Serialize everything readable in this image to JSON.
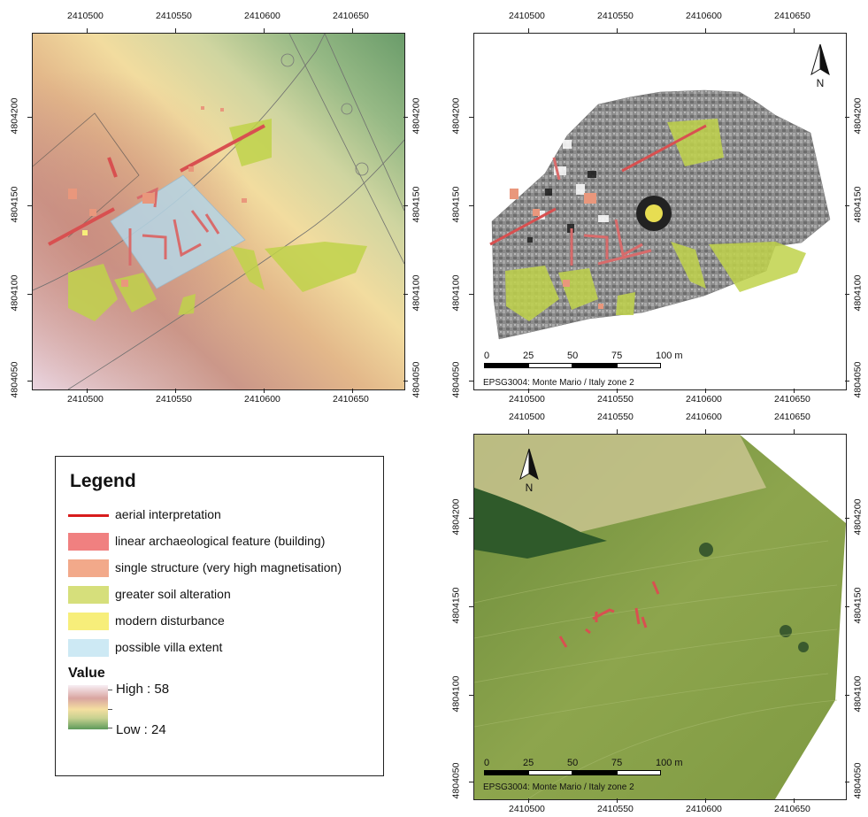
{
  "legend": {
    "title": "Legend",
    "items": [
      {
        "label": "aerial interpretation",
        "color": "#d81c1c",
        "kind": "line"
      },
      {
        "label": "linear archaeological feature (building)",
        "color": "#f08080",
        "kind": "fill"
      },
      {
        "label": "single structure (very high magnetisation)",
        "color": "#f2a98a",
        "kind": "fill"
      },
      {
        "label": "greater soil alteration",
        "color": "#d6df7b",
        "kind": "fill"
      },
      {
        "label": "modern disturbance",
        "color": "#f7ee7a",
        "kind": "fill"
      },
      {
        "label": "possible villa extent",
        "color": "#cde9f4",
        "kind": "fill"
      }
    ],
    "value_title": "Value",
    "high_label": "High : 58",
    "low_label": "Low : 24"
  },
  "maps": {
    "x_ticks": [
      "2410500",
      "2410550",
      "2410600",
      "2410650"
    ],
    "y_ticks": [
      "4804200",
      "4804150",
      "4804100",
      "4804050"
    ],
    "north_label": "N",
    "scalebar_labels": [
      "0",
      "25",
      "50",
      "75",
      "100 m"
    ],
    "crs_label": "EPSG3004: Monte Mario / Italy zone 2"
  },
  "colors": {
    "feature_red": "#d85050",
    "soil_green": "#bfd24a",
    "villa_blue": "#b5d6e6"
  }
}
